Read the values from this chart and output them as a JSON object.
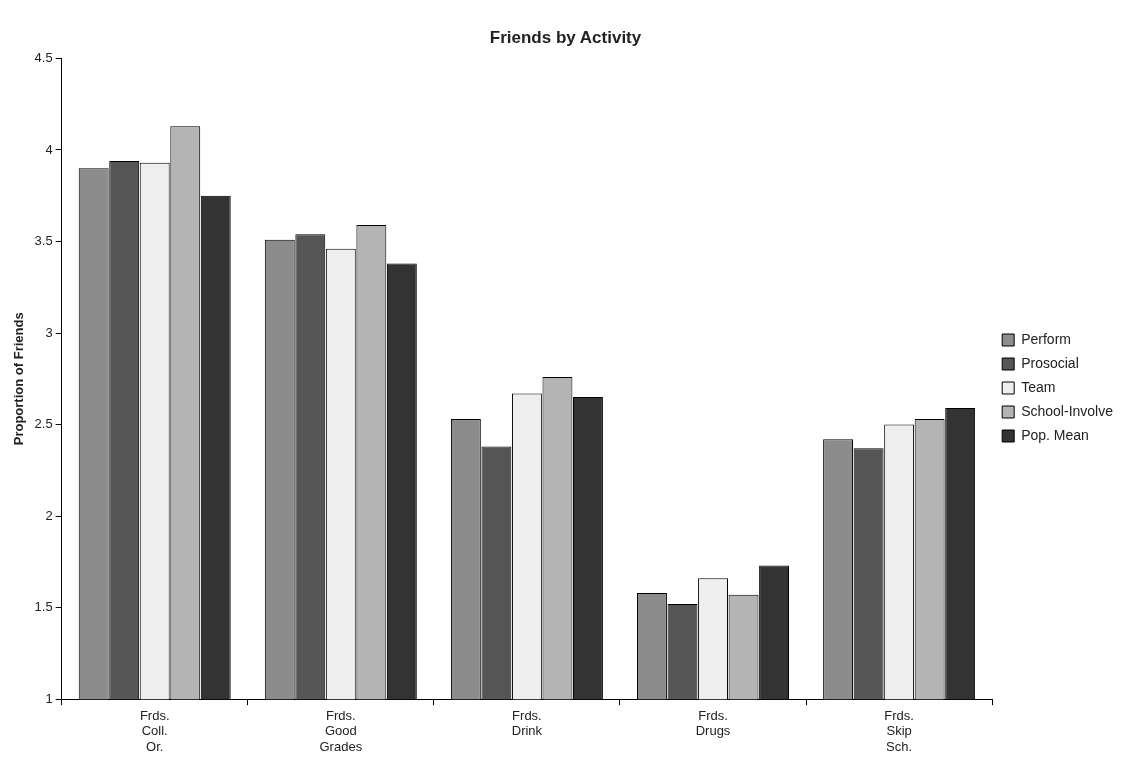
{
  "chart_data": {
    "type": "bar",
    "title": "Friends by Activity",
    "ylabel": "Proportion of Friends",
    "categories": [
      "Frds. Coll. Or.",
      "Frds. Good Grades",
      "Frds. Drink",
      "Frds. Drugs",
      "Frds. Skip Sch."
    ],
    "series": [
      {
        "name": "Perform",
        "color": "#8c8c8c",
        "values": [
          3.9,
          3.51,
          2.53,
          1.58,
          2.42
        ]
      },
      {
        "name": "Prosocial",
        "color": "#555555",
        "values": [
          3.94,
          3.54,
          2.38,
          1.52,
          2.37
        ]
      },
      {
        "name": "Team",
        "color": "#eeeeee",
        "values": [
          3.93,
          3.46,
          2.67,
          1.66,
          2.5
        ]
      },
      {
        "name": "School-Involve",
        "color": "#b4b4b4",
        "values": [
          4.13,
          3.59,
          2.76,
          1.57,
          2.53
        ]
      },
      {
        "name": "Pop. Mean",
        "color": "#333333",
        "values": [
          3.75,
          3.38,
          2.65,
          1.73,
          2.59
        ]
      }
    ],
    "ylim": [
      1,
      4.5
    ],
    "yticks": [
      1,
      1.5,
      2,
      2.5,
      3,
      3.5,
      4,
      4.5
    ],
    "grid": false,
    "legend": "right"
  }
}
